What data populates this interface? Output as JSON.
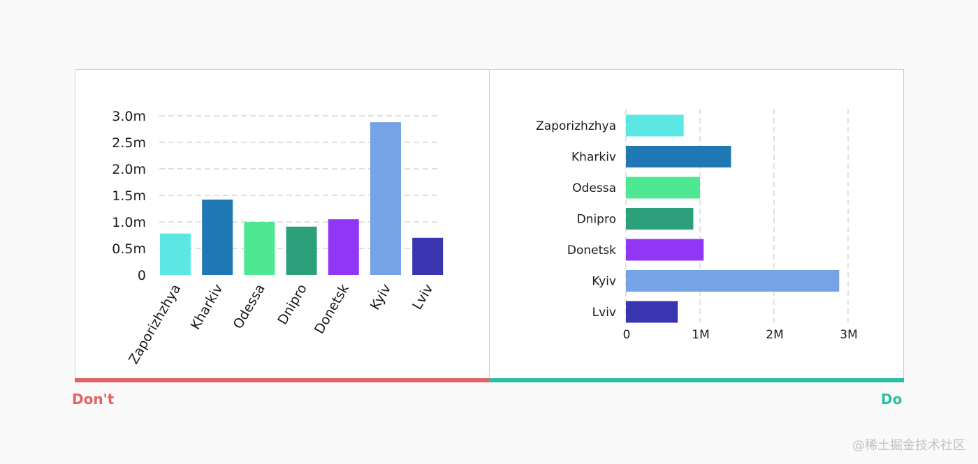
{
  "colors": {
    "background": "#f9f9f9",
    "panel": "#ffffff",
    "grid": "#e0e0e0",
    "dont": "#e06464",
    "do": "#2bbfa4",
    "bars": [
      "#5be8e4",
      "#1f78b4",
      "#4de891",
      "#2ba07a",
      "#9236f5",
      "#76a3e6",
      "#3935b0"
    ]
  },
  "labels": {
    "dont": "Don't",
    "do": "Do",
    "watermark": "@稀土掘金技术社区"
  },
  "chart_data": [
    {
      "type": "bar",
      "orientation": "vertical",
      "categories": [
        "Zaporizhzhya",
        "Kharkiv",
        "Odessa",
        "Dnipro",
        "Donetsk",
        "Kyiv",
        "Lviv"
      ],
      "values": [
        780000,
        1420000,
        1000000,
        910000,
        1050000,
        2880000,
        700000
      ],
      "ylim": [
        0,
        3000000
      ],
      "yticks": [
        {
          "value": 0,
          "label": "0"
        },
        {
          "value": 500000,
          "label": "0.5m"
        },
        {
          "value": 1000000,
          "label": "1.0m"
        },
        {
          "value": 1500000,
          "label": "1.5m"
        },
        {
          "value": 2000000,
          "label": "2.0m"
        },
        {
          "value": 2500000,
          "label": "2.5m"
        },
        {
          "value": 3000000,
          "label": "3.0m"
        }
      ],
      "grid": true,
      "xlabel_rotation": -60
    },
    {
      "type": "bar",
      "orientation": "horizontal",
      "categories": [
        "Zaporizhzhya",
        "Kharkiv",
        "Odessa",
        "Dnipro",
        "Donetsk",
        "Kyiv",
        "Lviv"
      ],
      "values": [
        780000,
        1420000,
        1000000,
        910000,
        1050000,
        2880000,
        700000
      ],
      "xlim": [
        0,
        3000000
      ],
      "xticks": [
        {
          "value": 0,
          "label": "0"
        },
        {
          "value": 1000000,
          "label": "1M"
        },
        {
          "value": 2000000,
          "label": "2M"
        },
        {
          "value": 3000000,
          "label": "3M"
        }
      ],
      "grid": true
    }
  ]
}
